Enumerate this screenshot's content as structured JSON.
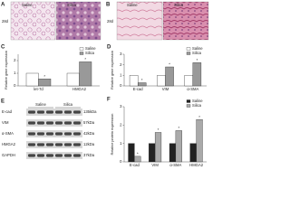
{
  "panels": {
    "A": {
      "label": "A",
      "side_label": "28d",
      "images": [
        "Saline",
        "Silica"
      ]
    },
    "B": {
      "label": "B",
      "side_label": "28d",
      "images": [
        "Saline",
        "Silica"
      ]
    }
  },
  "blot": {
    "label": "E",
    "columns": [
      "Saline",
      "Silica"
    ],
    "rows": [
      {
        "protein": "E-cad",
        "size": "135kDa"
      },
      {
        "protein": "VIM",
        "size": "57kDa"
      },
      {
        "protein": "α-SMA",
        "size": "42kDa"
      },
      {
        "protein": "HMGA2",
        "size": "12kDa"
      },
      {
        "protein": "GAPDH",
        "size": "37kDa"
      }
    ]
  },
  "chart_data": [
    {
      "type": "bar",
      "panel_label": "C",
      "y_label": "Relative gene expression",
      "categories": [
        "let-7d",
        "HMGA2"
      ],
      "series": [
        {
          "name": "Saline",
          "color": "#ffffff",
          "values": [
            1,
            1
          ]
        },
        {
          "name": "Silica",
          "color": "#999999",
          "values": [
            0.55,
            1.9
          ],
          "annotations": [
            "*",
            "*"
          ]
        }
      ],
      "ylim": [
        0,
        2.5
      ],
      "yticks": [
        0,
        1,
        2
      ]
    },
    {
      "type": "bar",
      "panel_label": "D",
      "y_label": "Relative gene expression",
      "categories": [
        "E-cad",
        "VIM",
        "α-SMA"
      ],
      "series": [
        {
          "name": "Saline",
          "color": "#ffffff",
          "values": [
            1,
            1,
            1
          ]
        },
        {
          "name": "Silica",
          "color": "#999999",
          "values": [
            0.3,
            1.8,
            2.2
          ],
          "annotations": [
            "*",
            "*",
            "*"
          ]
        }
      ],
      "ylim": [
        0,
        3
      ],
      "yticks": [
        0,
        1,
        2,
        3
      ]
    },
    {
      "type": "bar",
      "panel_label": "F",
      "y_label": "Relative protein expression",
      "categories": [
        "E-cad",
        "VIM",
        "α-SMA",
        "HMGA2"
      ],
      "series": [
        {
          "name": "Saline",
          "color": "#222222",
          "values": [
            1,
            1,
            1,
            1
          ]
        },
        {
          "name": "Silica",
          "color": "#aaaaaa",
          "values": [
            0.3,
            1.6,
            1.7,
            2.3
          ],
          "annotations": [
            "*",
            "*",
            "*",
            "*"
          ]
        }
      ],
      "ylim": [
        0,
        3
      ],
      "yticks": [
        0,
        1,
        2,
        3
      ]
    }
  ]
}
